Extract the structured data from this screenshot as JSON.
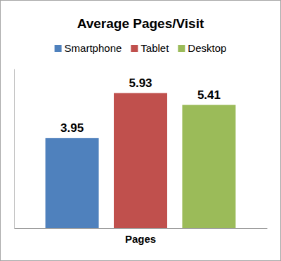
{
  "chart_data": {
    "type": "bar",
    "title": "Average Pages/Visit",
    "categories": [
      "Pages"
    ],
    "series": [
      {
        "name": "Smartphone",
        "color": "#4f81bd",
        "values": [
          3.95
        ]
      },
      {
        "name": "Tablet",
        "color": "#c0504d",
        "values": [
          5.93
        ]
      },
      {
        "name": "Desktop",
        "color": "#9bbb59",
        "values": [
          5.41
        ]
      }
    ],
    "ylim": [
      0,
      7
    ],
    "legend": "top",
    "data_labels": true,
    "grid": false,
    "tick_labels": "x"
  }
}
